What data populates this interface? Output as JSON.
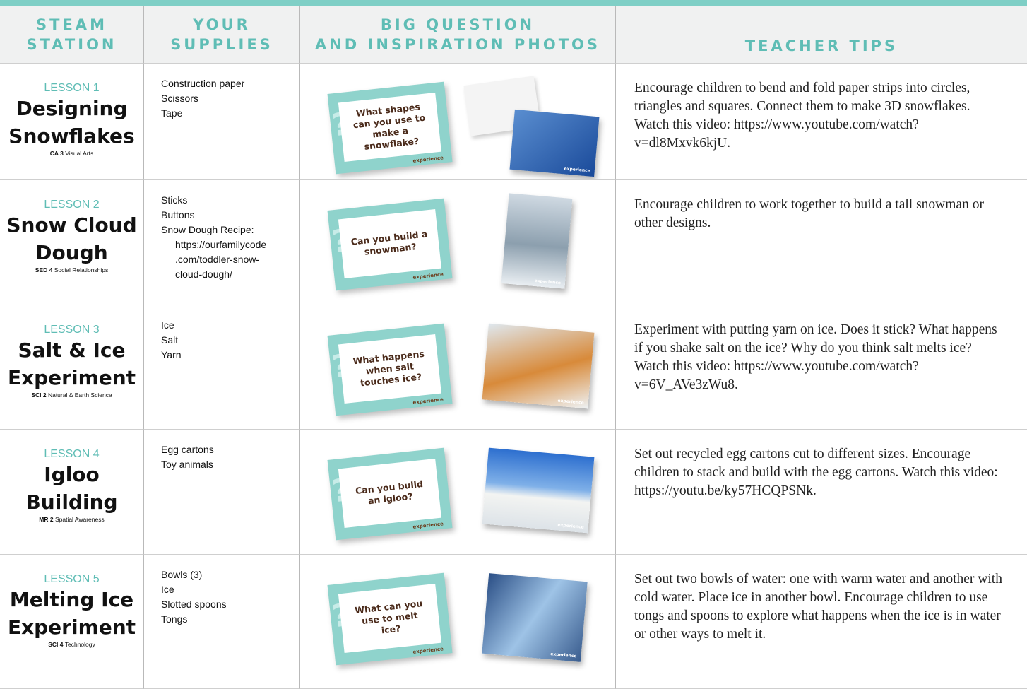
{
  "header": {
    "columns": [
      "STEAM\nSTATION",
      "YOUR\nSUPPLIES",
      "BIG QUESTION\nAND INSPIRATION PHOTOS",
      "TEACHER TIPS"
    ]
  },
  "brand": "experience",
  "rows": [
    {
      "lesson": "LESSON 1",
      "title": "Designing Snowflakes",
      "standard_code": "CA 3",
      "standard_name": "Visual Arts",
      "supplies": [
        "Construction paper",
        "Scissors",
        "Tape"
      ],
      "question": "What shapes can you use to make a snowflake?",
      "tips": "Encourage children to bend and fold paper strips into circles, triangles and squares. Connect them to make 3D snowflakes. Watch this video: https://www.youtube.com/watch?v=dl8Mxvk6kjU."
    },
    {
      "lesson": "LESSON 2",
      "title": "Snow Cloud Dough",
      "standard_code": "SED 4",
      "standard_name": "Social Relationships",
      "supplies": [
        "Sticks",
        "Buttons",
        "Snow Dough Recipe:"
      ],
      "supplies_link": "https://ourfamilycode.com/toddler-snow-cloud-dough/",
      "question": "Can you build a snowman?",
      "tips": "Encourage children to work together to build a tall snowman or other designs."
    },
    {
      "lesson": "LESSON 3",
      "title": "Salt & Ice Experiment",
      "standard_code": "SCI 2",
      "standard_name": "Natural & Earth Science",
      "supplies": [
        "Ice",
        "Salt",
        "Yarn"
      ],
      "question": "What happens when salt touches ice?",
      "tips": "Experiment with putting yarn on ice. Does it stick? What happens if you shake salt on the ice? Why do you think salt melts ice? Watch this video: https://www.youtube.com/watch?v=6V_AVe3zWu8."
    },
    {
      "lesson": "LESSON 4",
      "title": "Igloo Building",
      "standard_code": "MR 2",
      "standard_name": "Spatial Awareness",
      "supplies": [
        "Egg cartons",
        "Toy animals"
      ],
      "question": "Can you build an igloo?",
      "tips": "Set out recycled egg cartons cut to different sizes. Encourage children to stack and build with the egg cartons. Watch this video: https://youtu.be/ky57HCQPSNk."
    },
    {
      "lesson": "LESSON 5",
      "title": "Melting Ice Experiment",
      "standard_code": "SCI 4",
      "standard_name": "Technology",
      "supplies": [
        "Bowls (3)",
        "Ice",
        "Slotted spoons",
        "Tongs"
      ],
      "question": "What can you use to melt ice?",
      "tips": "Set out two bowls of water: one with warm water and another with cold water. Place ice in another bowl. Encourage children to use tongs and spoons to explore what happens when the ice is in water or other ways to melt it."
    }
  ]
}
